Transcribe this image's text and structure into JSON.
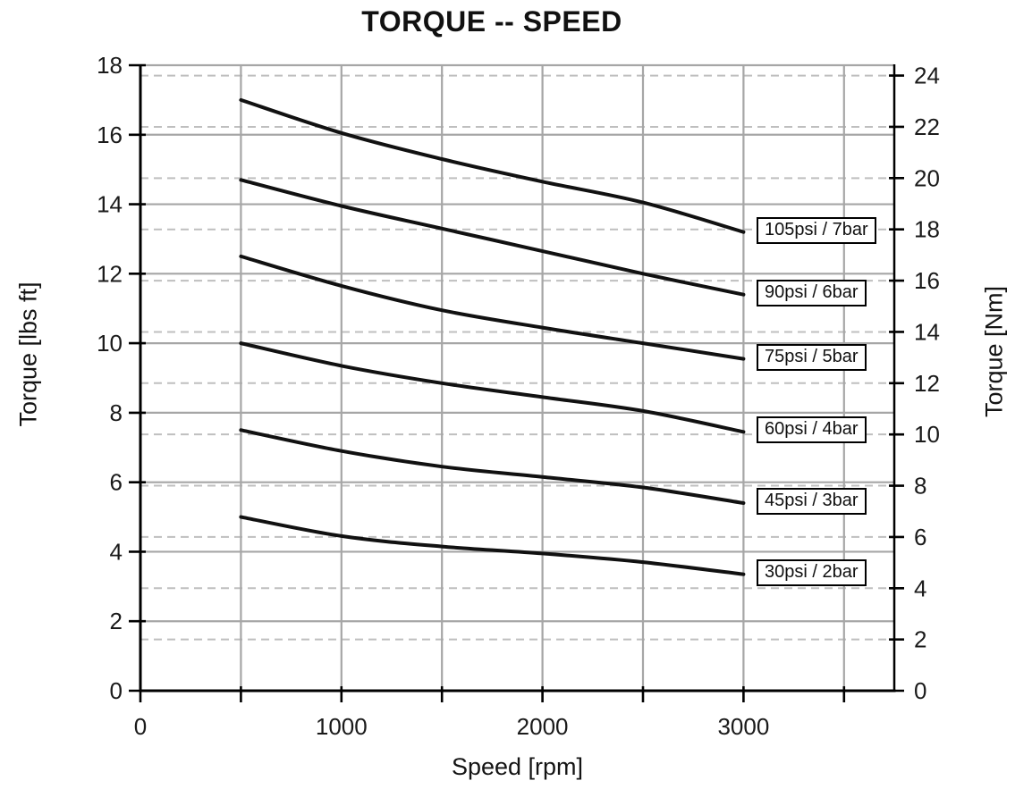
{
  "chart_data": {
    "type": "line",
    "title": "TORQUE -- SPEED",
    "xlabel": "Speed [rpm]",
    "ylabel_left": "Torque [lbs ft]",
    "ylabel_right": "Torque [Nm]",
    "xlim": [
      0,
      3750
    ],
    "ylim_left": [
      0,
      18
    ],
    "ylim_right": [
      0,
      24
    ],
    "nm_per_lbsft": 1.35582,
    "x_tick_rpm": [
      0,
      500,
      1000,
      1500,
      2000,
      2500,
      3000,
      3500
    ],
    "x_tick_labels": [
      {
        "value": 0,
        "label": "0"
      },
      {
        "value": 1000,
        "label": "1000"
      },
      {
        "value": 2000,
        "label": "2000"
      },
      {
        "value": 3000,
        "label": "3000"
      }
    ],
    "x_gridlines_rpm": [
      500,
      1000,
      1500,
      2000,
      2500,
      3000,
      3500
    ],
    "y_left_ticks": [
      0,
      2,
      4,
      6,
      8,
      10,
      12,
      14,
      16,
      18
    ],
    "y_right_ticks_nm": [
      0,
      2,
      4,
      6,
      8,
      10,
      12,
      14,
      16,
      18,
      20,
      22,
      24
    ],
    "grid": {
      "solid_horizontal_lbsft": [
        2,
        4,
        6,
        8,
        10,
        12,
        14,
        16,
        18
      ],
      "dashed_horizontal_nm": [
        2,
        4,
        6,
        8,
        10,
        12,
        14,
        16,
        18,
        20,
        22,
        24
      ],
      "solid_color": "#a6a6a6",
      "dashed_color": "#bfbfbf"
    },
    "axis_color": "#000000",
    "tick_label_color": "#1a1a1a",
    "line_color": "#111111",
    "x": [
      500,
      1000,
      1500,
      2000,
      2500,
      3000
    ],
    "series": [
      {
        "name": "105psi / 7bar",
        "values": [
          17.0,
          16.05,
          15.3,
          14.65,
          14.05,
          13.2
        ]
      },
      {
        "name": "90psi / 6bar",
        "values": [
          14.7,
          13.95,
          13.3,
          12.65,
          12.0,
          11.4
        ]
      },
      {
        "name": "75psi / 5bar",
        "values": [
          12.5,
          11.65,
          10.95,
          10.45,
          10.0,
          9.55
        ]
      },
      {
        "name": "60psi / 4bar",
        "values": [
          10.0,
          9.35,
          8.85,
          8.45,
          8.05,
          7.45
        ]
      },
      {
        "name": "45psi / 3bar",
        "values": [
          7.5,
          6.9,
          6.45,
          6.15,
          5.85,
          5.4
        ]
      },
      {
        "name": "30psi / 2bar",
        "values": [
          5.0,
          4.45,
          4.15,
          3.95,
          3.7,
          3.35
        ]
      }
    ],
    "legend_position": "right-of-curve-ends"
  }
}
